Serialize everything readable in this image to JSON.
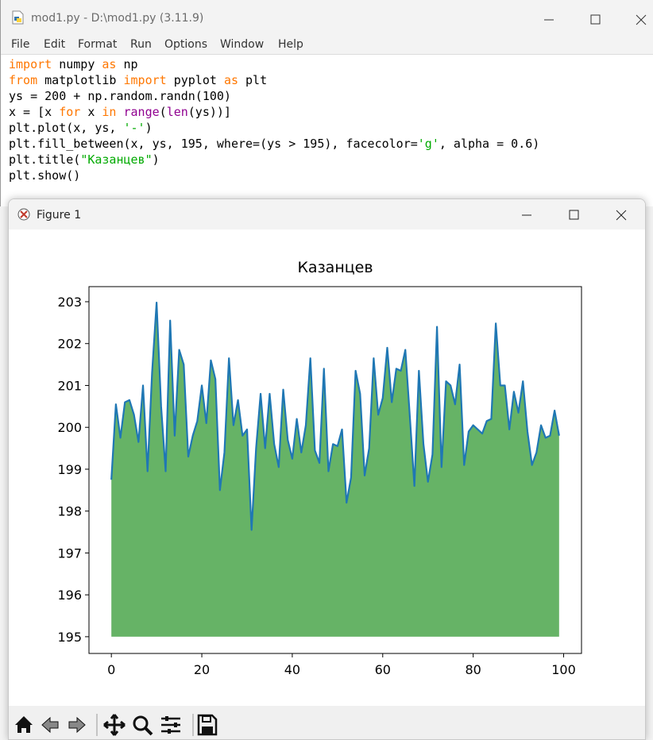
{
  "editor": {
    "title": "mod1.py - D:\\mod1.py (3.11.9)",
    "menu": [
      "File",
      "Edit",
      "Format",
      "Run",
      "Options",
      "Window",
      "Help"
    ],
    "code": [
      [
        {
          "text": "import",
          "color": "#ff7700"
        },
        {
          "text": " numpy ",
          "color": "#000000"
        },
        {
          "text": "as",
          "color": "#ff7700"
        },
        {
          "text": " np",
          "color": "#000000"
        }
      ],
      [
        {
          "text": "from",
          "color": "#ff7700"
        },
        {
          "text": " matplotlib ",
          "color": "#000000"
        },
        {
          "text": "import",
          "color": "#ff7700"
        },
        {
          "text": " pyplot ",
          "color": "#000000"
        },
        {
          "text": "as",
          "color": "#ff7700"
        },
        {
          "text": " plt",
          "color": "#000000"
        }
      ],
      [
        {
          "text": "ys = 200 + np.random.randn(100)",
          "color": "#000000"
        }
      ],
      [
        {
          "text": "x = [x ",
          "color": "#000000"
        },
        {
          "text": "for",
          "color": "#ff7700"
        },
        {
          "text": " x ",
          "color": "#000000"
        },
        {
          "text": "in",
          "color": "#ff7700"
        },
        {
          "text": " ",
          "color": "#000000"
        },
        {
          "text": "range",
          "color": "#900090"
        },
        {
          "text": "(",
          "color": "#000000"
        },
        {
          "text": "len",
          "color": "#900090"
        },
        {
          "text": "(ys))]",
          "color": "#000000"
        }
      ],
      [
        {
          "text": "plt.plot(x, ys, ",
          "color": "#000000"
        },
        {
          "text": "'-'",
          "color": "#00aa00"
        },
        {
          "text": ")",
          "color": "#000000"
        }
      ],
      [
        {
          "text": "plt.fill_between(x, ys, 195, where=(ys > 195), facecolor=",
          "color": "#000000"
        },
        {
          "text": "'g'",
          "color": "#00aa00"
        },
        {
          "text": ", alpha = 0.6)",
          "color": "#000000"
        }
      ],
      [
        {
          "text": "plt.title(",
          "color": "#000000"
        },
        {
          "text": "\"Казанцев\"",
          "color": "#00aa00"
        },
        {
          "text": ")",
          "color": "#000000"
        }
      ],
      [
        {
          "text": "plt.show()",
          "color": "#000000"
        }
      ]
    ]
  },
  "figure_window": {
    "title": "Figure 1"
  },
  "chart_data": {
    "type": "line",
    "title": "Казанцев",
    "x": [
      0,
      1,
      2,
      3,
      4,
      5,
      6,
      7,
      8,
      9,
      10,
      11,
      12,
      13,
      14,
      15,
      16,
      17,
      18,
      19,
      20,
      21,
      22,
      23,
      24,
      25,
      26,
      27,
      28,
      29,
      30,
      31,
      32,
      33,
      34,
      35,
      36,
      37,
      38,
      39,
      40,
      41,
      42,
      43,
      44,
      45,
      46,
      47,
      48,
      49,
      50,
      51,
      52,
      53,
      54,
      55,
      56,
      57,
      58,
      59,
      60,
      61,
      62,
      63,
      64,
      65,
      66,
      67,
      68,
      69,
      70,
      71,
      72,
      73,
      74,
      75,
      76,
      77,
      78,
      79,
      80,
      81,
      82,
      83,
      84,
      85,
      86,
      87,
      88,
      89,
      90,
      91,
      92,
      93,
      94,
      95,
      96,
      97,
      98,
      99
    ],
    "values": [
      198.75,
      200.55,
      199.75,
      200.6,
      200.65,
      200.3,
      199.65,
      201.0,
      198.95,
      201.3,
      202.98,
      200.5,
      198.95,
      202.55,
      199.8,
      201.85,
      201.5,
      199.3,
      199.8,
      200.15,
      201.0,
      200.1,
      201.6,
      201.15,
      198.5,
      199.4,
      201.65,
      200.05,
      200.65,
      199.8,
      199.95,
      197.55,
      199.5,
      200.8,
      199.5,
      200.8,
      199.6,
      199.05,
      200.9,
      199.7,
      199.25,
      200.2,
      199.4,
      200.05,
      201.65,
      199.45,
      199.15,
      201.4,
      198.95,
      199.6,
      199.55,
      199.95,
      198.2,
      198.8,
      201.35,
      200.8,
      198.85,
      199.5,
      201.65,
      200.3,
      200.7,
      201.9,
      200.6,
      201.4,
      201.35,
      201.85,
      200.25,
      198.6,
      201.35,
      199.6,
      198.7,
      199.35,
      202.4,
      199.05,
      201.1,
      201.0,
      200.55,
      201.5,
      199.1,
      199.9,
      200.05,
      199.95,
      199.85,
      200.15,
      200.2,
      202.48,
      201.0,
      201.0,
      199.95,
      200.85,
      200.35,
      201.1,
      199.9,
      199.1,
      199.4,
      200.05,
      199.75,
      199.8,
      200.4,
      199.8
    ],
    "color": "#1f77b4",
    "fill_to": 195,
    "fill_color": "#008000",
    "fill_alpha": 0.6,
    "xlim": [
      -4.95,
      103.95
    ],
    "xticks": [
      0,
      20,
      40,
      60,
      80,
      100
    ],
    "ylim": [
      194.6,
      203.36
    ],
    "yticks": [
      195,
      196,
      197,
      198,
      199,
      200,
      201,
      202,
      203
    ]
  }
}
